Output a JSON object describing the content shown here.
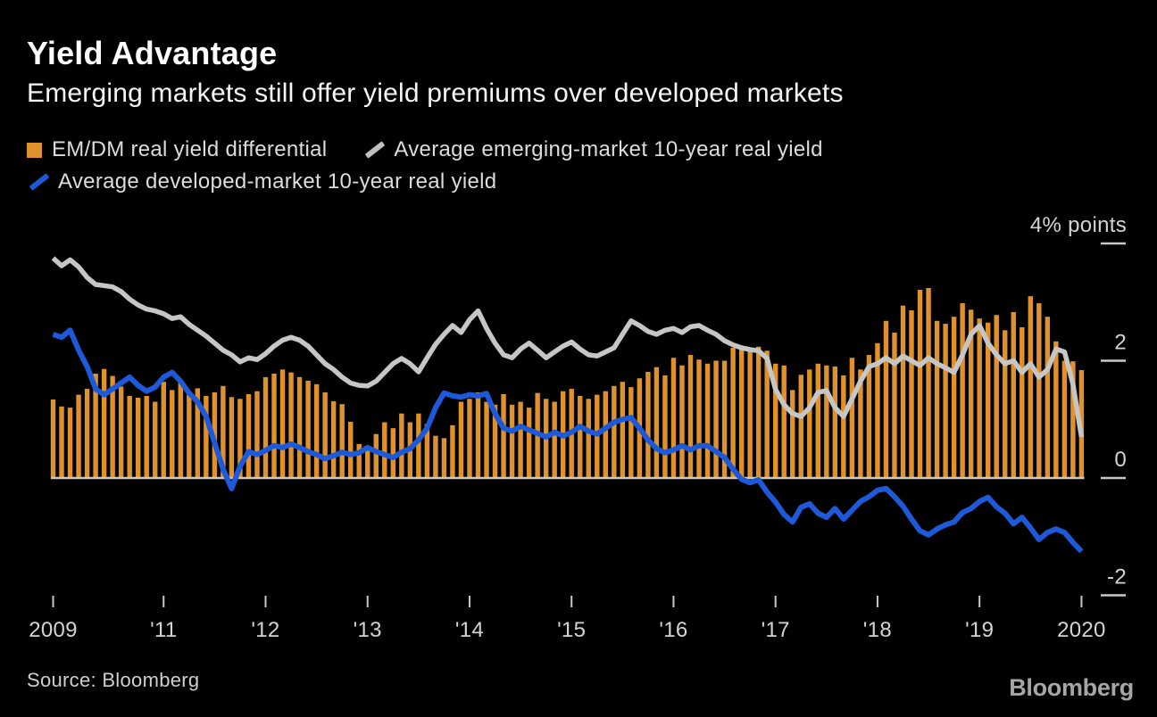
{
  "header": {
    "title": "Yield Advantage",
    "subtitle": "Emerging markets still offer yield premiums over developed markets"
  },
  "legend": {
    "items": [
      {
        "swatch": "square",
        "color": "#DF922B",
        "label": "EM/DM real yield differential"
      },
      {
        "swatch": "slash",
        "color": "#C0C0BE",
        "label": "Average emerging-market 10-year real yield"
      },
      {
        "swatch": "slash",
        "color": "#1D59D8",
        "label": "Average developed-market 10-year real yield"
      }
    ]
  },
  "footer": {
    "source": "Source: Bloomberg",
    "logo": "Bloomberg"
  },
  "chart_data": {
    "type": "bar+line",
    "title": "Yield Advantage",
    "subtitle": "Emerging markets still offer yield premiums over developed markets",
    "x_start": "2009-12",
    "x_end": "2020-01",
    "frequency": "monthly",
    "ylim": [
      -2,
      4
    ],
    "grid": "off",
    "legend_position": "top",
    "axis_color": "#C8C8C6",
    "x_ticks": [
      {
        "label": "2009",
        "month_index": 0
      },
      {
        "label": "'11",
        "month_index": 13
      },
      {
        "label": "'12",
        "month_index": 25
      },
      {
        "label": "'13",
        "month_index": 37
      },
      {
        "label": "'14",
        "month_index": 49
      },
      {
        "label": "'15",
        "month_index": 61
      },
      {
        "label": "'16",
        "month_index": 73
      },
      {
        "label": "'17",
        "month_index": 85
      },
      {
        "label": "'18",
        "month_index": 97
      },
      {
        "label": "'19",
        "month_index": 109
      },
      {
        "label": "2020",
        "month_index": 121
      }
    ],
    "y_ticks": [
      {
        "value": 4,
        "label": "4% points"
      },
      {
        "value": 2,
        "label": "2"
      },
      {
        "value": 0,
        "label": "0"
      },
      {
        "value": -2,
        "label": "-2"
      }
    ],
    "series": [
      {
        "name": "EM/DM real yield differential",
        "type": "bar",
        "color": "#DF922B",
        "values": [
          1.34,
          1.22,
          1.2,
          1.42,
          1.52,
          1.78,
          1.86,
          1.74,
          1.56,
          1.4,
          1.37,
          1.4,
          1.3,
          1.64,
          1.5,
          1.66,
          1.44,
          1.53,
          1.4,
          1.46,
          1.57,
          1.38,
          1.35,
          1.43,
          1.48,
          1.72,
          1.78,
          1.85,
          1.8,
          1.72,
          1.66,
          1.6,
          1.46,
          1.31,
          1.26,
          0.96,
          0.58,
          0.5,
          0.75,
          0.95,
          0.85,
          1.1,
          0.95,
          1.1,
          0.92,
          0.72,
          0.68,
          0.9,
          1.3,
          1.35,
          1.46,
          1.3,
          1.25,
          1.43,
          1.25,
          1.3,
          1.2,
          1.45,
          1.35,
          1.3,
          1.48,
          1.52,
          1.4,
          1.35,
          1.42,
          1.48,
          1.57,
          1.64,
          1.55,
          1.7,
          1.81,
          1.89,
          1.75,
          2.05,
          1.92,
          2.1,
          2.02,
          1.95,
          2.0,
          2.0,
          2.22,
          2.24,
          2.22,
          2.24,
          2.17,
          1.95,
          1.92,
          1.5,
          1.76,
          1.85,
          1.95,
          1.92,
          1.9,
          1.75,
          2.05,
          1.85,
          2.1,
          2.3,
          2.68,
          2.48,
          2.94,
          2.86,
          3.21,
          3.24,
          2.68,
          2.63,
          2.75,
          2.98,
          2.87,
          2.72,
          2.65,
          2.78,
          2.52,
          2.83,
          2.57,
          3.1,
          2.98,
          2.75,
          2.33,
          2.0,
          1.99,
          1.84
        ]
      },
      {
        "name": "Average emerging-market 10-year real yield",
        "type": "line",
        "color": "#C6C6C4",
        "values": [
          3.75,
          3.62,
          3.72,
          3.6,
          3.42,
          3.3,
          3.28,
          3.26,
          3.18,
          3.05,
          2.95,
          2.88,
          2.85,
          2.8,
          2.72,
          2.75,
          2.62,
          2.52,
          2.42,
          2.3,
          2.18,
          2.1,
          1.98,
          2.05,
          2.02,
          2.12,
          2.25,
          2.35,
          2.4,
          2.35,
          2.25,
          2.1,
          1.95,
          1.85,
          1.72,
          1.62,
          1.58,
          1.57,
          1.65,
          1.8,
          1.95,
          2.04,
          1.95,
          1.81,
          2.05,
          2.28,
          2.45,
          2.6,
          2.48,
          2.7,
          2.85,
          2.55,
          2.3,
          2.1,
          2.05,
          2.2,
          2.3,
          2.18,
          2.05,
          2.15,
          2.25,
          2.32,
          2.2,
          2.1,
          2.08,
          2.15,
          2.22,
          2.45,
          2.68,
          2.6,
          2.5,
          2.45,
          2.52,
          2.55,
          2.48,
          2.58,
          2.6,
          2.52,
          2.45,
          2.34,
          2.27,
          2.22,
          2.19,
          2.17,
          2.04,
          1.51,
          1.25,
          1.1,
          1.05,
          1.2,
          1.46,
          1.49,
          1.2,
          1.05,
          1.35,
          1.65,
          1.9,
          1.95,
          2.05,
          1.95,
          2.08,
          2.0,
          1.92,
          2.05,
          1.95,
          1.88,
          1.8,
          2.1,
          2.45,
          2.6,
          2.3,
          2.1,
          1.95,
          2.0,
          1.8,
          1.95,
          1.72,
          1.85,
          2.2,
          2.15,
          1.6,
          0.7
        ]
      },
      {
        "name": "Average developed-market 10-year real yield",
        "type": "line",
        "color": "#1D59D8",
        "values": [
          2.45,
          2.4,
          2.52,
          2.18,
          1.9,
          1.52,
          1.42,
          1.52,
          1.62,
          1.72,
          1.58,
          1.48,
          1.55,
          1.72,
          1.8,
          1.65,
          1.45,
          1.3,
          1.05,
          0.6,
          0.15,
          -0.18,
          0.2,
          0.45,
          0.4,
          0.47,
          0.55,
          0.52,
          0.58,
          0.52,
          0.45,
          0.4,
          0.33,
          0.38,
          0.44,
          0.4,
          0.43,
          0.52,
          0.45,
          0.4,
          0.35,
          0.44,
          0.5,
          0.65,
          0.85,
          1.2,
          1.45,
          1.4,
          1.38,
          1.42,
          1.4,
          1.44,
          1.1,
          0.85,
          0.8,
          0.88,
          0.82,
          0.76,
          0.7,
          0.78,
          0.72,
          0.78,
          0.88,
          0.8,
          0.75,
          0.85,
          0.95,
          1.0,
          1.03,
          0.85,
          0.65,
          0.5,
          0.43,
          0.48,
          0.55,
          0.48,
          0.55,
          0.55,
          0.45,
          0.35,
          0.15,
          -0.02,
          -0.08,
          -0.03,
          -0.24,
          -0.41,
          -0.62,
          -0.75,
          -0.5,
          -0.44,
          -0.6,
          -0.67,
          -0.52,
          -0.7,
          -0.55,
          -0.4,
          -0.32,
          -0.21,
          -0.18,
          -0.32,
          -0.48,
          -0.7,
          -0.9,
          -0.97,
          -0.87,
          -0.8,
          -0.75,
          -0.59,
          -0.52,
          -0.4,
          -0.33,
          -0.49,
          -0.6,
          -0.78,
          -0.67,
          -0.85,
          -1.05,
          -0.93,
          -0.87,
          -0.93,
          -1.1,
          -1.25
        ]
      }
    ]
  }
}
